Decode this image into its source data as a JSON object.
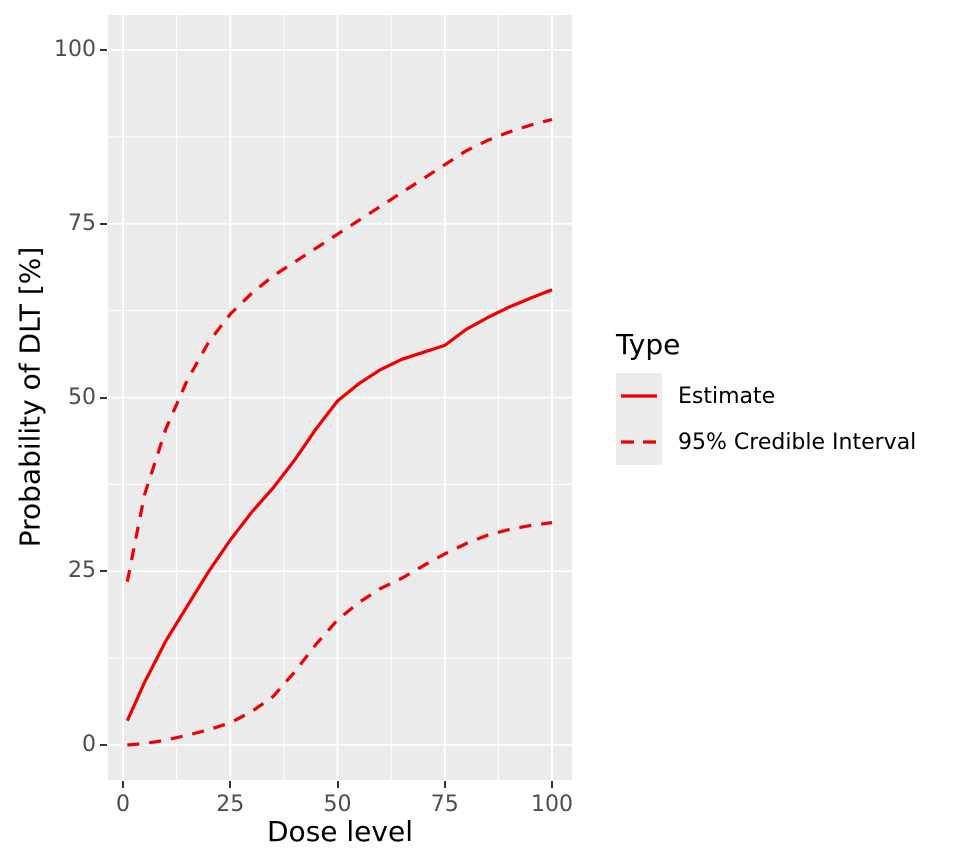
{
  "axes": {
    "x": {
      "title": "Dose level",
      "ticks": [
        "0",
        "25",
        "50",
        "75",
        "100"
      ],
      "range": [
        0,
        100
      ]
    },
    "y": {
      "title": "Probability of DLT [%]",
      "ticks": [
        "0",
        "25",
        "50",
        "75",
        "100"
      ],
      "range": [
        0,
        100
      ]
    }
  },
  "legend": {
    "title": "Type",
    "items": [
      {
        "label": "Estimate",
        "style": "solid"
      },
      {
        "label": "95% Credible Interval",
        "style": "dashed"
      }
    ]
  },
  "colors": {
    "line": "#EE0000",
    "panel_bg": "#EBEBEB",
    "grid": "#FFFFFF",
    "tick_text": "#4D4D4D",
    "tick_mark": "#333333",
    "legend_key_bg": "#EBEBEB"
  },
  "chart_data": {
    "type": "line",
    "title": "",
    "xlabel": "Dose level",
    "ylabel": "Probability of DLT [%]",
    "xlim": [
      0,
      100
    ],
    "ylim": [
      0,
      100
    ],
    "grid": "major-and-minor",
    "legend_position": "right",
    "x": [
      1,
      5,
      10,
      15,
      20,
      25,
      30,
      35,
      40,
      45,
      50,
      55,
      60,
      65,
      70,
      75,
      80,
      85,
      90,
      95,
      100
    ],
    "series": [
      {
        "name": "Estimate",
        "style": "solid",
        "values": [
          3.5,
          9,
          15,
          20,
          25,
          29.5,
          33.5,
          37,
          41,
          45.5,
          49.5,
          52,
          54,
          55.5,
          56.5,
          57.5,
          59.8,
          61.5,
          63,
          64.3,
          65.5
        ]
      },
      {
        "name": "95% Credible Interval (upper)",
        "style": "dashed",
        "values": [
          23.5,
          36,
          45.5,
          52.5,
          58,
          62,
          65,
          67.5,
          69.5,
          71.5,
          73.5,
          75.5,
          77.5,
          79.5,
          81.5,
          83.5,
          85.5,
          87,
          88.2,
          89.2,
          90
        ]
      },
      {
        "name": "95% Credible Interval (lower)",
        "style": "dashed",
        "values": [
          0,
          0.2,
          0.7,
          1.4,
          2.2,
          3.2,
          4.8,
          7,
          10.5,
          14.5,
          18,
          20.5,
          22.5,
          24,
          25.8,
          27.5,
          29,
          30.2,
          31,
          31.6,
          32
        ]
      }
    ]
  }
}
